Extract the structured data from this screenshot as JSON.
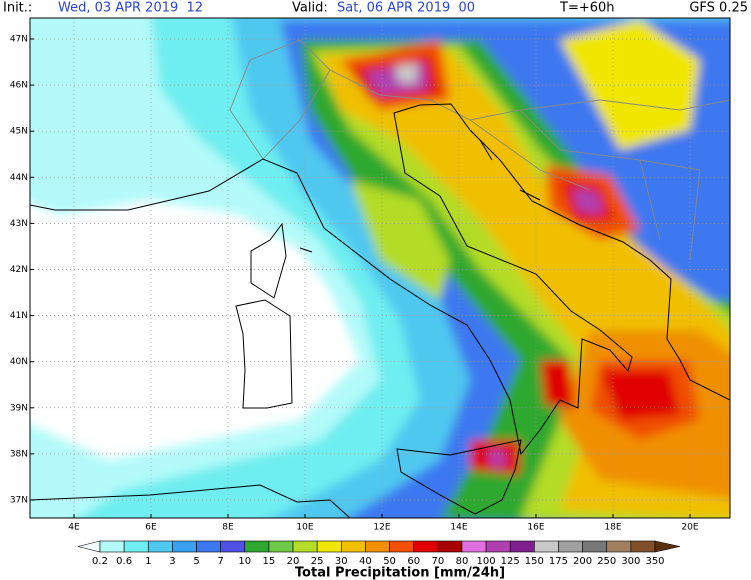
{
  "header": {
    "init_label": "Init.:",
    "init": "Wed, 03 APR 2019  12",
    "valid_label": "Valid:",
    "valid": "Sat, 06 APR 2019  00",
    "forecast": "T=+60h",
    "model": "GFS 0.25"
  },
  "map": {
    "lat_labels": [
      "47N",
      "46N",
      "45N",
      "44N",
      "43N",
      "42N",
      "41N",
      "40N",
      "39N",
      "38N",
      "37N"
    ],
    "lon_labels": [
      "4E",
      "6E",
      "8E",
      "10E",
      "12E",
      "14E",
      "16E",
      "18E",
      "20E"
    ]
  },
  "colorbar": {
    "labels": [
      "0.2",
      "0.6",
      "1",
      "3",
      "5",
      "7",
      "10",
      "15",
      "20",
      "25",
      "30",
      "40",
      "50",
      "60",
      "70",
      "80",
      "100",
      "125",
      "150",
      "175",
      "200",
      "250",
      "300",
      "350"
    ],
    "colors": [
      "#f4ffff",
      "#b4fafa",
      "#6eeef0",
      "#50c8f0",
      "#3ca0f0",
      "#3c78f0",
      "#5050e6",
      "#2ea82e",
      "#6ec84a",
      "#b4dc28",
      "#f0e600",
      "#f0c000",
      "#f09000",
      "#f05000",
      "#e00000",
      "#a80000",
      "#e070e0",
      "#b040b0",
      "#802090",
      "#c8c8c8",
      "#a0a0a0",
      "#787878",
      "#a08060",
      "#80502a",
      "#5a3010"
    ],
    "title": "Total Precipitation [mm/24h]"
  }
}
